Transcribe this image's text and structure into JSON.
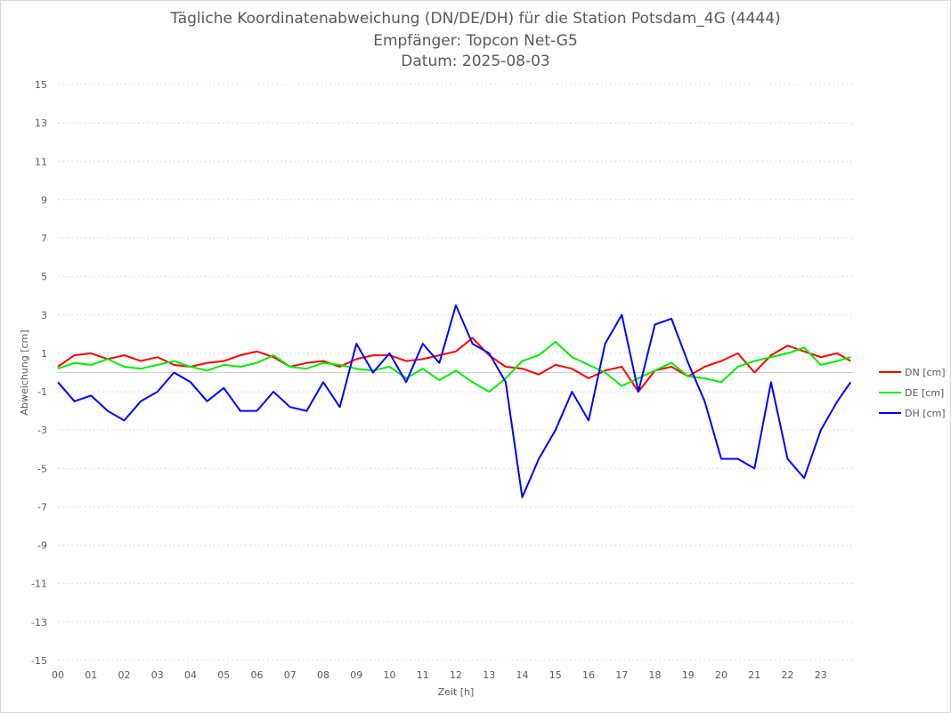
{
  "chart_data": {
    "type": "line",
    "title": "Tägliche Koordinatenabweichung (DN/DE/DH) für die Station Potsdam_4G (4444)",
    "subtitle_1": "Empfänger: Topcon Net-G5",
    "subtitle_2": "Datum: 2025-08-03",
    "xlabel": "Zeit [h]",
    "ylabel": "Abweichung [cm]",
    "xlim": [
      0,
      24
    ],
    "ylim": [
      -15,
      15
    ],
    "x_ticks": [
      "00",
      "01",
      "02",
      "03",
      "04",
      "05",
      "06",
      "07",
      "08",
      "09",
      "10",
      "11",
      "12",
      "13",
      "14",
      "15",
      "16",
      "17",
      "18",
      "19",
      "20",
      "21",
      "22",
      "23"
    ],
    "y_ticks": [
      15,
      13,
      11,
      9,
      7,
      5,
      3,
      1,
      -1,
      -3,
      -5,
      -7,
      -9,
      -11,
      -13,
      -15
    ],
    "grid": "horizontal dotted",
    "legend_position": "right",
    "x": [
      0,
      0.5,
      1,
      1.5,
      2,
      2.5,
      3,
      3.5,
      4,
      4.5,
      5,
      5.5,
      6,
      6.5,
      7,
      7.5,
      8,
      8.5,
      9,
      9.5,
      10,
      10.5,
      11,
      11.5,
      12,
      12.5,
      13,
      13.5,
      14,
      14.5,
      15,
      15.5,
      16,
      16.5,
      17,
      17.5,
      18,
      18.5,
      19,
      19.5,
      20,
      20.5,
      21,
      21.5,
      22,
      22.5,
      23,
      23.5,
      23.9
    ],
    "series": [
      {
        "name": "DN [cm]",
        "color": "#ff0000",
        "values": [
          0.3,
          0.9,
          1.0,
          0.7,
          0.9,
          0.6,
          0.8,
          0.4,
          0.3,
          0.5,
          0.6,
          0.9,
          1.1,
          0.8,
          0.3,
          0.5,
          0.6,
          0.3,
          0.7,
          0.9,
          0.9,
          0.6,
          0.7,
          0.9,
          1.1,
          1.8,
          0.9,
          0.3,
          0.2,
          -0.1,
          0.4,
          0.2,
          -0.3,
          0.1,
          0.3,
          -1.0,
          0.1,
          0.3,
          -0.2,
          0.3,
          0.6,
          1.0,
          0.0,
          0.9,
          1.4,
          1.1,
          0.8,
          1.0,
          0.6
        ]
      },
      {
        "name": "DE [cm]",
        "color": "#00ee00",
        "values": [
          0.2,
          0.5,
          0.4,
          0.7,
          0.3,
          0.2,
          0.4,
          0.6,
          0.3,
          0.1,
          0.4,
          0.3,
          0.5,
          0.9,
          0.3,
          0.2,
          0.5,
          0.4,
          0.2,
          0.1,
          0.3,
          -0.3,
          0.2,
          -0.4,
          0.1,
          -0.5,
          -1.0,
          -0.3,
          0.6,
          0.9,
          1.6,
          0.8,
          0.4,
          0.0,
          -0.7,
          -0.3,
          0.1,
          0.5,
          -0.2,
          -0.3,
          -0.5,
          0.3,
          0.6,
          0.8,
          1.0,
          1.3,
          0.4,
          0.6,
          0.8
        ]
      },
      {
        "name": "DH [cm]",
        "color": "#0000ff",
        "values": [
          -0.5,
          -1.5,
          -1.2,
          -2.0,
          -2.5,
          -1.5,
          -1.0,
          0.0,
          -0.5,
          -1.5,
          -0.8,
          -2.0,
          -2.0,
          -1.0,
          -1.8,
          -2.0,
          -0.5,
          -1.8,
          1.5,
          0.0,
          1.0,
          -0.5,
          1.5,
          0.5,
          3.5,
          1.5,
          1.0,
          -0.5,
          -6.5,
          -4.5,
          -3.0,
          -1.0,
          -2.5,
          1.5,
          3.0,
          -1.0,
          2.5,
          2.8,
          0.5,
          -1.5,
          -4.5,
          -4.5,
          -5.0,
          -0.5,
          -4.5,
          -5.5,
          -3.0,
          -1.5,
          -0.5
        ]
      }
    ]
  }
}
